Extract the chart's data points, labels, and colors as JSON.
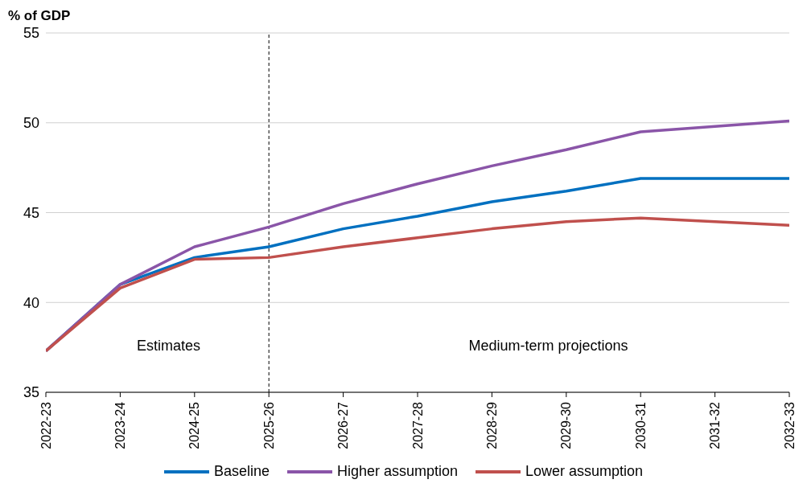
{
  "chart_data": {
    "type": "line",
    "ylabel": "% of GDP",
    "categories": [
      "2022-23",
      "2023-24",
      "2024-25",
      "2025-26",
      "2026-27",
      "2027-28",
      "2028-29",
      "2029-30",
      "2030-31",
      "2031-32",
      "2032-33"
    ],
    "series": [
      {
        "name": "Baseline",
        "color": "#0070c0",
        "values": [
          37.3,
          41.0,
          42.5,
          43.1,
          44.1,
          44.8,
          45.6,
          46.2,
          46.9,
          46.9,
          46.9
        ]
      },
      {
        "name": "Higher assumption",
        "color": "#8a55a8",
        "values": [
          37.3,
          41.0,
          43.1,
          44.2,
          45.5,
          46.6,
          47.6,
          48.5,
          49.5,
          49.8,
          50.1
        ]
      },
      {
        "name": "Lower assumption",
        "color": "#c0504d",
        "values": [
          37.3,
          40.8,
          42.4,
          42.5,
          43.1,
          43.6,
          44.1,
          44.5,
          44.7,
          44.5,
          44.3
        ]
      }
    ],
    "ylim": [
      35,
      55
    ],
    "yticks": [
      35,
      40,
      45,
      50,
      55
    ],
    "grid": "y",
    "legend": "bottom",
    "line_style": "solid",
    "marker": "none",
    "ref_lines": [
      {
        "axis": "x",
        "value": "2025-26",
        "color": "#000000",
        "line_style": "dashed"
      }
    ],
    "annotations": [
      "Estimates",
      "Medium-term projections"
    ]
  }
}
